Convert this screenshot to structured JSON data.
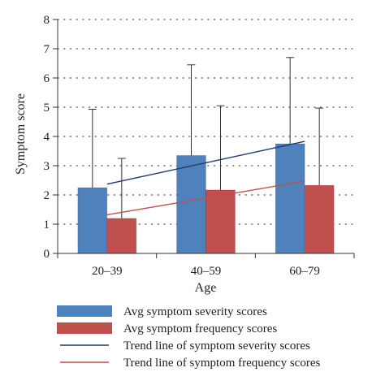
{
  "chart_data": {
    "type": "bar",
    "xlabel": "Age",
    "ylabel": "Symptom score",
    "ylim": [
      0,
      8
    ],
    "yticks": [
      0,
      1,
      2,
      3,
      4,
      5,
      6,
      7,
      8
    ],
    "grid": true,
    "categories": [
      "20–39",
      "40–59",
      "60–79"
    ],
    "series": [
      {
        "name": "Avg symptom severity scores",
        "values": [
          2.25,
          3.35,
          3.75
        ],
        "error_upper": [
          4.93,
          6.45,
          6.7
        ],
        "color": "#4f81bd"
      },
      {
        "name": "Avg symptom frequency scores",
        "values": [
          1.2,
          2.17,
          2.33
        ],
        "error_upper": [
          3.25,
          5.05,
          4.97
        ],
        "color": "#c0504d"
      }
    ],
    "trend_lines": [
      {
        "name": "Trend line of symptom severity scores",
        "start": 2.37,
        "end": 3.83,
        "color": "#1f3a6e"
      },
      {
        "name": "Trend line of symptom frequency scores",
        "start": 1.32,
        "end": 2.47,
        "color": "#c0504d"
      }
    ],
    "legend_position": "bottom"
  }
}
